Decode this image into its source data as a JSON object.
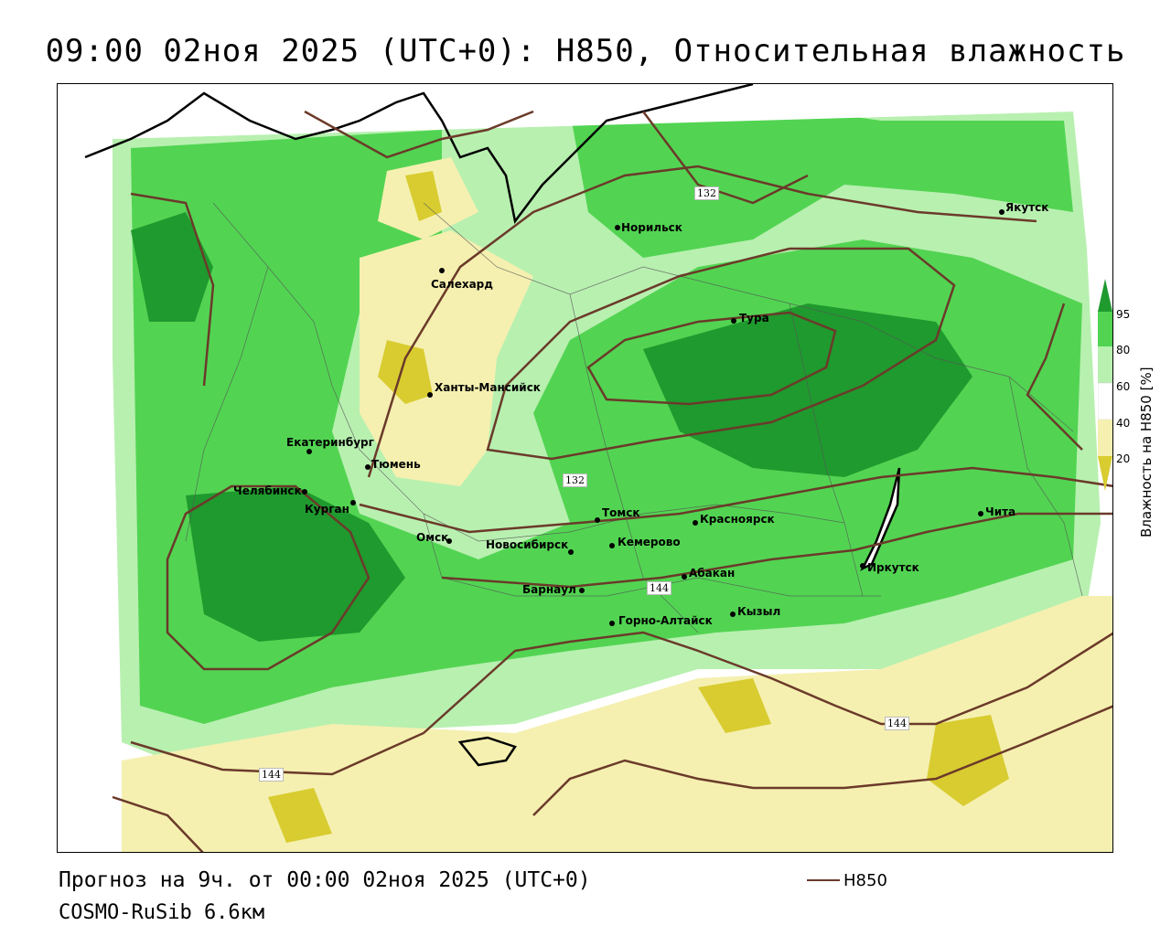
{
  "title": "09:00 02ноя 2025 (UTC+0): H850, Относительная влажность",
  "footer": {
    "forecast": "Прогноз на 9ч. от 00:00 02ноя 2025 (UTC+0)",
    "model": "COSMO-RuSib 6.6км"
  },
  "legend": {
    "line_label": "H850",
    "line_color": "#6b3a2a"
  },
  "colorbar": {
    "title": "Влажность на H850 [%]",
    "ticks": [
      "95",
      "80",
      "60",
      "40",
      "20"
    ],
    "colors": {
      "c95": "#1f9a2e",
      "c80": "#52d452",
      "c60": "#b8f0b0",
      "c40": "#ffffff",
      "c20": "#f5f0b0",
      "c0": "#d8cc30"
    }
  },
  "contour_labels": [
    "132",
    "132",
    "144",
    "144",
    "144"
  ],
  "cities": [
    {
      "name": "Якутск"
    },
    {
      "name": "Норильск"
    },
    {
      "name": "Салехард"
    },
    {
      "name": "Тура"
    },
    {
      "name": "Ханты-Мансийск"
    },
    {
      "name": "Екатеринбург"
    },
    {
      "name": "Тюмень"
    },
    {
      "name": "Челябинск"
    },
    {
      "name": "Курган"
    },
    {
      "name": "Омск"
    },
    {
      "name": "Новосибирск"
    },
    {
      "name": "Томск"
    },
    {
      "name": "Кемерово"
    },
    {
      "name": "Красноярск"
    },
    {
      "name": "Абакан"
    },
    {
      "name": "Барнаул"
    },
    {
      "name": "Горно-Алтайск"
    },
    {
      "name": "Кызыл"
    },
    {
      "name": "Иркутск"
    },
    {
      "name": "Чита"
    }
  ]
}
